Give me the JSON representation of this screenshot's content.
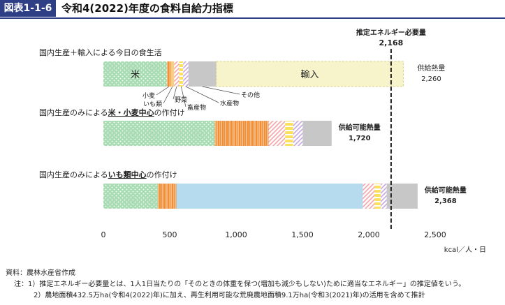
{
  "header": {
    "figure_label": "図表1-1-6",
    "title": "令和4(2022)年度の食料自給力指標"
  },
  "colors": {
    "rice": "#a8dcb2",
    "wheat": "#f7b77a",
    "potato": "#fbcf80",
    "vegetables": "#f3a5a8",
    "livestock": "#fbe15e",
    "fish": "#c9a8df",
    "other": "#c7c7c7",
    "potato_crop": "#b6dbee",
    "import": "#f7f4cc",
    "reference_line": "#222222"
  },
  "chart_data": {
    "type": "bar",
    "orientation": "horizontal",
    "stacked": true,
    "unit": "kcal／人・日",
    "xlim": [
      0,
      2500
    ],
    "x_ticks": [
      0,
      500,
      1000,
      1500,
      2000,
      2500
    ],
    "x_tick_labels": [
      "0",
      "500",
      "1,000",
      "1,500",
      "2,000",
      "2,500"
    ],
    "reference_line": {
      "label": "推定エネルギー必要量",
      "value": 2168,
      "value_label": "2,168"
    },
    "bars": [
      {
        "label": "国内生産＋輸入による今日の食生活",
        "total_label": "供給熱量",
        "total": 2260,
        "total_text": "2,260",
        "segments": [
          {
            "name": "米",
            "value": 480,
            "color_key": "rice",
            "pattern": "dots",
            "text": "米"
          },
          {
            "name": "小麦",
            "value": 28,
            "color_key": "wheat",
            "pattern": "vstripes"
          },
          {
            "name": "いも類",
            "value": 25,
            "color_key": "potato",
            "pattern": "plain"
          },
          {
            "name": "野菜",
            "value": 38,
            "color_key": "vegetables",
            "pattern": "diag"
          },
          {
            "name": "畜産物",
            "value": 30,
            "color_key": "livestock",
            "pattern": "hstripes"
          },
          {
            "name": "水産物",
            "value": 40,
            "color_key": "fish",
            "pattern": "diag"
          },
          {
            "name": "その他",
            "value": 210,
            "color_key": "other",
            "pattern": "plain"
          },
          {
            "name": "輸入",
            "value": 1409,
            "color_key": "import",
            "pattern": "plain",
            "text": "輸入"
          }
        ]
      },
      {
        "label_parts": [
          "国内生産のみによる",
          "米・小麦中心",
          "の作付け"
        ],
        "total_label": "供給可能熱量",
        "total": 1720,
        "total_text": "1,720",
        "segments": [
          {
            "name": "米",
            "value": 840,
            "color_key": "rice",
            "pattern": "dots"
          },
          {
            "name": "小麦",
            "value": 405,
            "color_key": "wheat",
            "pattern": "vstripes"
          },
          {
            "name": "野菜",
            "value": 125,
            "color_key": "vegetables",
            "pattern": "diag"
          },
          {
            "name": "畜産物",
            "value": 60,
            "color_key": "livestock",
            "pattern": "hstripes"
          },
          {
            "name": "水産物",
            "value": 72,
            "color_key": "fish",
            "pattern": "diag"
          },
          {
            "name": "その他",
            "value": 218,
            "color_key": "other",
            "pattern": "plain"
          }
        ]
      },
      {
        "label_parts": [
          "国内生産のみによる",
          "いも類中心",
          "の作付け"
        ],
        "total_label": "供給可能熱量",
        "total": 2368,
        "total_text": "2,368",
        "segments": [
          {
            "name": "米",
            "value": 410,
            "color_key": "rice",
            "pattern": "dots"
          },
          {
            "name": "小麦",
            "value": 140,
            "color_key": "wheat",
            "pattern": "vstripes"
          },
          {
            "name": "いも類",
            "value": 1405,
            "color_key": "potato_crop",
            "pattern": "plain"
          },
          {
            "name": "野菜",
            "value": 90,
            "color_key": "vegetables",
            "pattern": "diag"
          },
          {
            "name": "畜産物",
            "value": 45,
            "color_key": "livestock",
            "pattern": "hstripes"
          },
          {
            "name": "水産物",
            "value": 45,
            "color_key": "fish",
            "pattern": "diag"
          },
          {
            "name": "その他",
            "value": 233,
            "color_key": "other",
            "pattern": "plain"
          }
        ]
      }
    ],
    "callouts": [
      "小麦",
      "いも類",
      "野菜",
      "畜産物",
      "水産物",
      "その他"
    ]
  },
  "footer": {
    "source": "資料：農林水産省作成",
    "note1": "注：1）推定エネルギー必要量とは、1人1日当たりの「そのときの体重を保つ(増加も減少もしない)ために適当なエネルギー」の推定値をいう。",
    "note2": "2）農地面積432.5万ha(令和4(2022)年)に加え、再生利用可能な荒廃農地面積9.1万ha(令和3(2021)年)の活用を含めて推計"
  }
}
